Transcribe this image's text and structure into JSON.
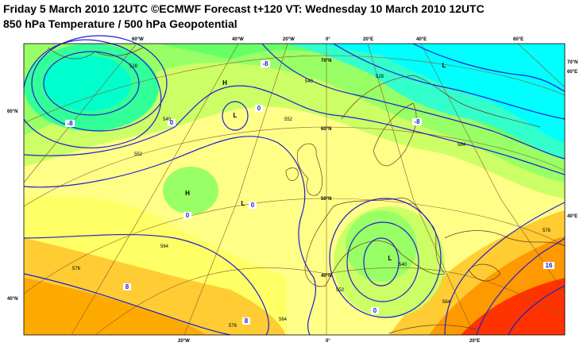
{
  "header": {
    "title": "Friday 5 March 2010 12UTC ©ECMWF Forecast t+120 VT: Wednesday 10 March 2010 12UTC",
    "subtitle": "850 hPa Temperature / 500 hPa Geopotential"
  },
  "map": {
    "top_longitude_labels": [
      "60°W",
      "40°W",
      "20°W",
      "0°",
      "20°E",
      "40°E",
      "60°E"
    ],
    "bottom_longitude_labels": [
      "20°W",
      "0°",
      "20°E"
    ],
    "left_latitude_labels": [
      "60°N",
      "40°N"
    ],
    "right_labels": [
      "70°N",
      "60°E",
      "40°E"
    ],
    "inner_latitude_labels": [
      "70°N",
      "60°N",
      "50°N",
      "40°N"
    ],
    "pressure_centers": [
      "H",
      "L",
      "H",
      "L",
      "L",
      "L"
    ],
    "temperature_labels": [
      "-8",
      "-8",
      "0",
      "0",
      "0",
      "0",
      "8",
      "8",
      "16",
      "-8",
      "0"
    ],
    "geopotential_labels": [
      "528",
      "540",
      "552",
      "552",
      "564",
      "576",
      "576",
      "540",
      "528",
      "564",
      "552",
      "540",
      "564",
      "576",
      "564"
    ]
  }
}
